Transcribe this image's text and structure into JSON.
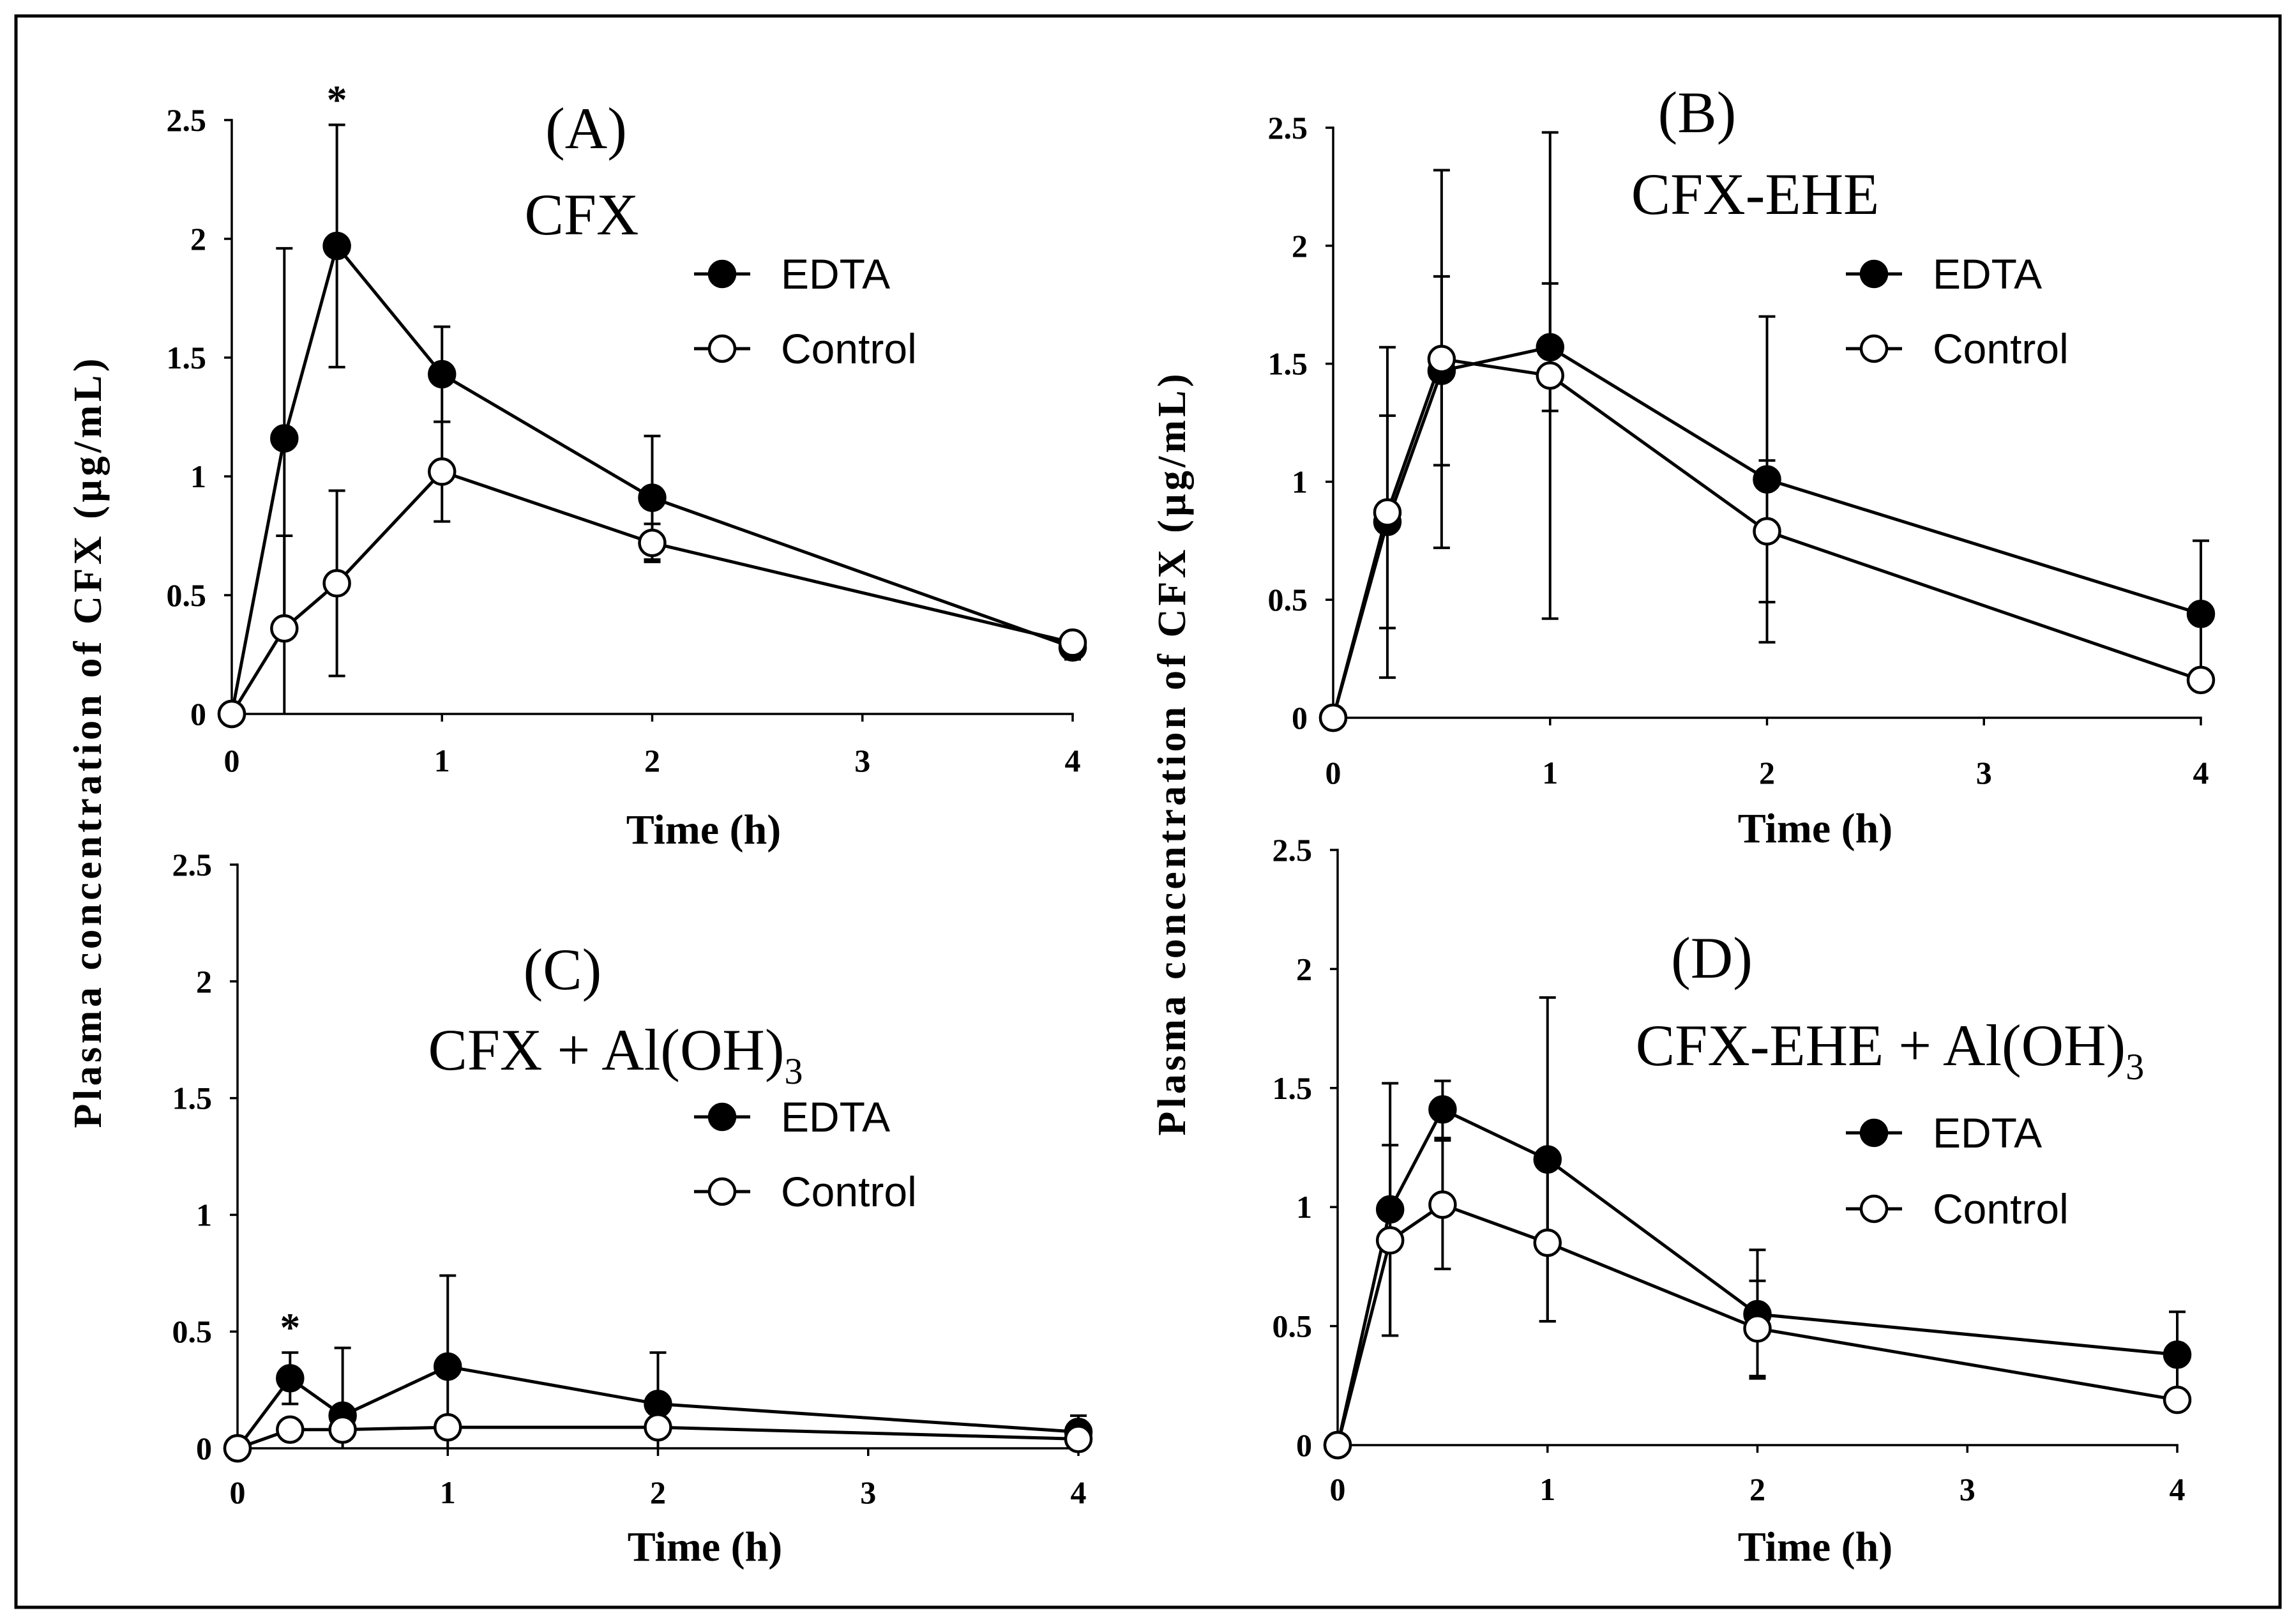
{
  "figure": {
    "ylabel_left": "Plasma concentration of  CFX (µg/mL)",
    "ylabel_right": "Plasma concentration of  CFX (µg/mL)"
  },
  "colors": {
    "axis": "#000000",
    "line": "#000000",
    "edta": "#000000",
    "control_fill": "#ffffff",
    "border": "#000000"
  },
  "chart_data": [
    {
      "type": "line",
      "panel_label": "(A)",
      "title": "CFX",
      "xlabel": "Time (h)",
      "xlim": [
        0,
        4
      ],
      "ylim": [
        0,
        2.5
      ],
      "x_ticks": [
        0,
        1,
        2,
        3,
        4
      ],
      "x_tick_labels": [
        "0",
        "1",
        "2",
        "3",
        "4"
      ],
      "y_ticks": [
        0,
        0.5,
        1,
        1.5,
        2,
        2.5
      ],
      "y_tick_labels": [
        "0",
        "0.5",
        "1",
        "1.5",
        "2",
        "2.5"
      ],
      "grid": false,
      "legend_position": "top-right",
      "x": [
        0,
        0.25,
        0.5,
        1,
        2,
        4
      ],
      "series": [
        {
          "name": "EDTA",
          "marker": "filled-circle",
          "y": [
            0,
            1.16,
            1.97,
            1.43,
            0.91,
            0.28
          ],
          "error": [
            0,
            0.8,
            0.51,
            0.2,
            0.26,
            0.05
          ]
        },
        {
          "name": "Control",
          "marker": "open-circle",
          "y": [
            0,
            0.36,
            0.55,
            1.02,
            0.72,
            0.3
          ],
          "error": [
            0,
            0.39,
            0.39,
            0.21,
            0.08,
            0.02
          ]
        }
      ],
      "annotations": [
        {
          "x": 0.5,
          "text": "*"
        }
      ]
    },
    {
      "type": "line",
      "panel_label": "(B)",
      "title": "CFX-EHE",
      "xlabel": "Time (h)",
      "xlim": [
        0,
        4
      ],
      "ylim": [
        0,
        2.5
      ],
      "x_ticks": [
        0,
        1,
        2,
        3,
        4
      ],
      "x_tick_labels": [
        "0",
        "1",
        "2",
        "3",
        "4"
      ],
      "y_ticks": [
        0,
        0.5,
        1,
        1.5,
        2,
        2.5
      ],
      "y_tick_labels": [
        "0",
        "0.5",
        "1",
        "1.5",
        "2",
        "2.5"
      ],
      "grid": false,
      "legend_position": "top-right",
      "x": [
        0,
        0.25,
        0.5,
        1,
        2,
        4
      ],
      "series": [
        {
          "name": "EDTA",
          "marker": "filled-circle",
          "y": [
            0,
            0.83,
            1.47,
            1.57,
            1.01,
            0.44
          ],
          "error": [
            0,
            0.45,
            0.4,
            0.27,
            0.69,
            0.31
          ]
        },
        {
          "name": "Control",
          "marker": "open-circle",
          "y": [
            0,
            0.87,
            1.52,
            1.45,
            0.79,
            0.16
          ],
          "error": [
            0,
            0.7,
            0.8,
            1.03,
            0.3,
            0.02
          ]
        }
      ],
      "annotations": []
    },
    {
      "type": "line",
      "panel_label": "(C)",
      "title": "CFX + Al(OH)",
      "title_subscript": "3",
      "xlabel": "Time (h)",
      "xlim": [
        0,
        4
      ],
      "ylim": [
        0,
        2.5
      ],
      "x_ticks": [
        0,
        1,
        2,
        3,
        4
      ],
      "x_tick_labels": [
        "0",
        "1",
        "2",
        "3",
        "4"
      ],
      "y_ticks": [
        0,
        0.5,
        1,
        1.5,
        2,
        2.5
      ],
      "y_tick_labels": [
        "0",
        "0.5",
        "1",
        "1.5",
        "2",
        "2.5"
      ],
      "grid": false,
      "legend_position": "center-right",
      "x": [
        0,
        0.25,
        0.5,
        1,
        2,
        4
      ],
      "series": [
        {
          "name": "EDTA",
          "marker": "filled-circle",
          "y": [
            0,
            0.3,
            0.14,
            0.35,
            0.19,
            0.07
          ],
          "error": [
            0,
            0.11,
            0.29,
            0.39,
            0.22,
            0.07
          ]
        },
        {
          "name": "Control",
          "marker": "open-circle",
          "y": [
            0,
            0.08,
            0.08,
            0.09,
            0.09,
            0.04
          ],
          "error": [
            0,
            0.01,
            0.01,
            0.01,
            0.01,
            0.01
          ]
        }
      ],
      "annotations": [
        {
          "x": 0.25,
          "text": "*"
        }
      ]
    },
    {
      "type": "line",
      "panel_label": "(D)",
      "title": "CFX-EHE + Al(OH)",
      "title_subscript": "3",
      "xlabel": "Time (h)",
      "xlim": [
        0,
        4
      ],
      "ylim": [
        0,
        2.5
      ],
      "x_ticks": [
        0,
        1,
        2,
        3,
        4
      ],
      "x_tick_labels": [
        "0",
        "1",
        "2",
        "3",
        "4"
      ],
      "y_ticks": [
        0,
        0.5,
        1,
        1.5,
        2,
        2.5
      ],
      "y_tick_labels": [
        "0",
        "0.5",
        "1",
        "1.5",
        "2",
        "2.5"
      ],
      "grid": false,
      "legend_position": "center-right",
      "x": [
        0,
        0.25,
        0.5,
        1,
        2,
        4
      ],
      "series": [
        {
          "name": "EDTA",
          "marker": "filled-circle",
          "y": [
            0,
            0.99,
            1.41,
            1.2,
            0.55,
            0.38
          ],
          "error": [
            0,
            0.53,
            0.12,
            0.68,
            0.27,
            0.18
          ]
        },
        {
          "name": "Control",
          "marker": "open-circle",
          "y": [
            0,
            0.86,
            1.01,
            0.85,
            0.49,
            0.19
          ],
          "error": [
            0,
            0.4,
            0.27,
            0.33,
            0.2,
            0.01
          ]
        }
      ],
      "annotations": []
    }
  ]
}
